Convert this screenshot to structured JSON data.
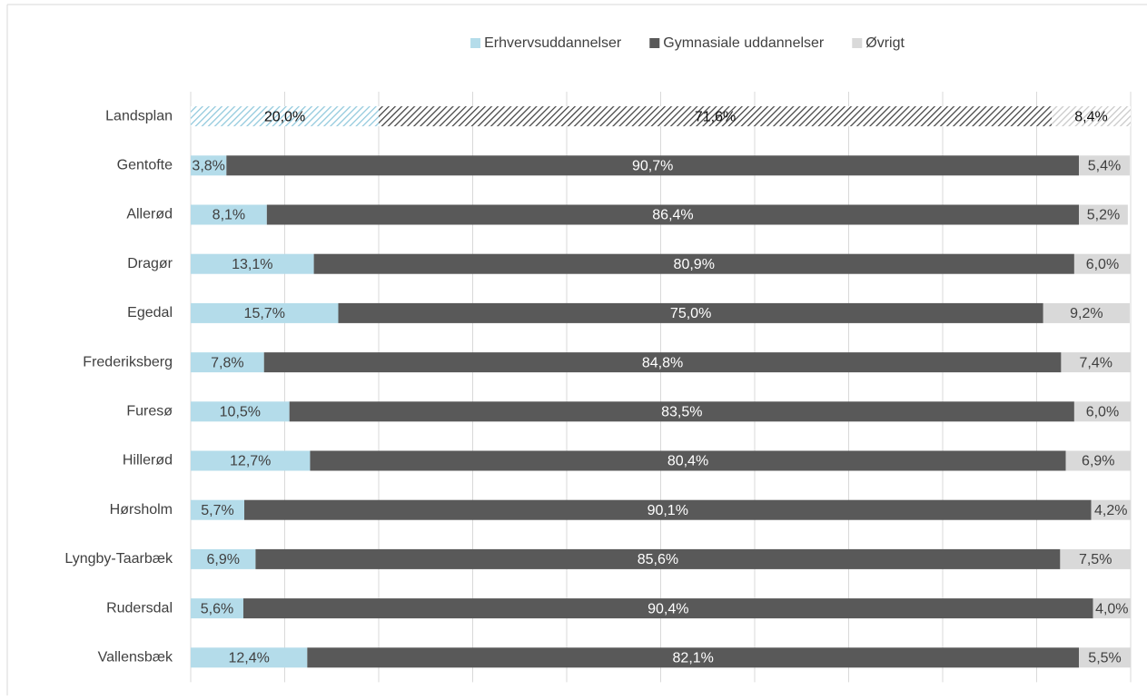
{
  "chart_data": {
    "type": "stacked_barh",
    "categories": [
      "Landsplan",
      "Gentofte",
      "Allerød",
      "Dragør",
      "Egedal",
      "Frederiksberg",
      "Furesø",
      "Hillerød",
      "Hørsholm",
      "Lyngby-Taarbæk",
      "Rudersdal",
      "Vallensbæk"
    ],
    "series": [
      {
        "name": "Erhvervsuddannelser",
        "color": "#b4dcea",
        "label_color": "#404040",
        "values": [
          20.0,
          3.8,
          8.1,
          13.1,
          15.7,
          7.8,
          10.5,
          12.7,
          5.7,
          6.9,
          5.6,
          12.4
        ],
        "value_labels": [
          "20,0%",
          "3,8%",
          "8,1%",
          "13,1%",
          "15,7%",
          "7,8%",
          "10,5%",
          "12,7%",
          "5,7%",
          "6,9%",
          "5,6%",
          "12,4%"
        ]
      },
      {
        "name": "Gymnasiale uddannelser",
        "color": "#595959",
        "label_color": "#ffffff",
        "values": [
          71.6,
          90.7,
          86.4,
          80.9,
          75.0,
          84.8,
          83.5,
          80.4,
          90.1,
          85.6,
          90.4,
          82.1
        ],
        "value_labels": [
          "71,6%",
          "90,7%",
          "86,4%",
          "80,9%",
          "75,0%",
          "84,8%",
          "83,5%",
          "80,4%",
          "90,1%",
          "85,6%",
          "90,4%",
          "82,1%"
        ]
      },
      {
        "name": "Øvrigt",
        "color": "#d9d9d9",
        "label_color": "#404040",
        "values": [
          8.4,
          5.4,
          5.2,
          6.0,
          9.2,
          7.4,
          6.0,
          6.9,
          4.2,
          7.5,
          4.0,
          5.5
        ],
        "value_labels": [
          "8,4%",
          "5,4%",
          "5,2%",
          "6,0%",
          "9,2%",
          "7,4%",
          "6,0%",
          "6,9%",
          "4,2%",
          "7,5%",
          "4,0%",
          "5,5%"
        ]
      }
    ],
    "hatched_index": 0,
    "xlim": [
      0,
      100
    ],
    "xticks": [
      0,
      10,
      20,
      30,
      40,
      50,
      60,
      70,
      80,
      90,
      100
    ],
    "grid": true,
    "legend": "top"
  }
}
